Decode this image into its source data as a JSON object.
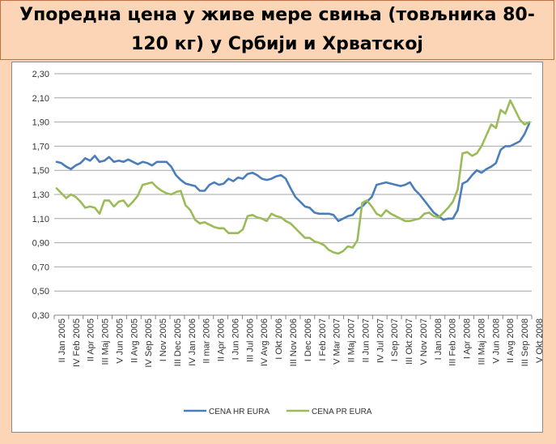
{
  "title": {
    "line1": "Упоредна цена у живе мере свиња (товљника 80-",
    "line2": "120 кг) у Србији и Хрватској"
  },
  "chart_data": {
    "type": "line",
    "y_ticks": [
      "0,30",
      "0,50",
      "0,70",
      "0,90",
      "1,10",
      "1,30",
      "1,50",
      "1,70",
      "1,90",
      "2,10",
      "2,30"
    ],
    "ylim": [
      0.3,
      2.3
    ],
    "grid": "horizontal",
    "legend_position": "bottom",
    "n_points": 100,
    "x_tick_labels": [
      "II Jan 2005",
      "IV Feb 2005",
      "II Apr 2005",
      "III Maj 2005",
      "V Jun 2005",
      "II Avg 2005",
      "IV Sep 2005",
      "I Nov 2005",
      "III Dec 2005",
      "IV Jan 2006",
      "II mar 2006",
      "II Apr 2006",
      "I Jun 2006",
      "III Jul 2006",
      "IV Avg 2006",
      "I Okt 2006",
      "III Nov 2006",
      "I Dec 2006",
      "I Feb 2007",
      "V Mar 2007",
      "II Maj 2007",
      "II Jun 2007",
      "IV Jul 2007",
      "I Sep 2007",
      "III Okt 2007",
      "V Nov 2007",
      "I Jan 2008",
      "III Feb 2008",
      "I Apr 2008",
      "III Maj 2008",
      "V Jun 2008",
      "II Avg 2008",
      "III Sep 2008",
      "V Okt 2008"
    ],
    "series": [
      {
        "name": "CENA HR EURA",
        "color": "#4a7ebb",
        "values": [
          1.57,
          1.56,
          1.53,
          1.51,
          1.54,
          1.56,
          1.6,
          1.58,
          1.62,
          1.57,
          1.58,
          1.61,
          1.57,
          1.58,
          1.57,
          1.59,
          1.57,
          1.55,
          1.57,
          1.56,
          1.54,
          1.57,
          1.57,
          1.57,
          1.53,
          1.46,
          1.42,
          1.39,
          1.38,
          1.37,
          1.33,
          1.33,
          1.38,
          1.4,
          1.38,
          1.39,
          1.43,
          1.41,
          1.44,
          1.43,
          1.47,
          1.48,
          1.46,
          1.43,
          1.42,
          1.43,
          1.45,
          1.46,
          1.43,
          1.35,
          1.28,
          1.24,
          1.2,
          1.19,
          1.15,
          1.14,
          1.14,
          1.14,
          1.13,
          1.08,
          1.1,
          1.12,
          1.13,
          1.18,
          1.2,
          1.24,
          1.28,
          1.38,
          1.39,
          1.4,
          1.39,
          1.38,
          1.37,
          1.38,
          1.4,
          1.34,
          1.3,
          1.25,
          1.2,
          1.15,
          1.12,
          1.09,
          1.1,
          1.1,
          1.17,
          1.39,
          1.41,
          1.46,
          1.5,
          1.48,
          1.51,
          1.53,
          1.56,
          1.67,
          1.7,
          1.7,
          1.72,
          1.74,
          1.8,
          1.89
        ]
      },
      {
        "name": "CENA PR EURA",
        "color": "#9bbb59",
        "values": [
          1.35,
          1.31,
          1.27,
          1.3,
          1.28,
          1.24,
          1.19,
          1.2,
          1.19,
          1.14,
          1.25,
          1.25,
          1.2,
          1.24,
          1.25,
          1.2,
          1.24,
          1.29,
          1.38,
          1.39,
          1.4,
          1.36,
          1.33,
          1.31,
          1.3,
          1.32,
          1.33,
          1.21,
          1.17,
          1.09,
          1.06,
          1.07,
          1.05,
          1.03,
          1.02,
          1.02,
          0.98,
          0.98,
          0.98,
          1.01,
          1.12,
          1.13,
          1.11,
          1.1,
          1.08,
          1.14,
          1.12,
          1.11,
          1.08,
          1.06,
          1.02,
          0.98,
          0.94,
          0.94,
          0.91,
          0.9,
          0.88,
          0.84,
          0.82,
          0.81,
          0.83,
          0.87,
          0.86,
          0.92,
          1.23,
          1.25,
          1.2,
          1.14,
          1.12,
          1.17,
          1.14,
          1.12,
          1.1,
          1.08,
          1.08,
          1.09,
          1.1,
          1.14,
          1.15,
          1.12,
          1.11,
          1.15,
          1.19,
          1.24,
          1.34,
          1.64,
          1.65,
          1.62,
          1.64,
          1.7,
          1.79,
          1.88,
          1.85,
          2.0,
          1.97,
          2.08,
          2.0,
          1.92,
          1.88,
          1.9
        ]
      }
    ]
  }
}
